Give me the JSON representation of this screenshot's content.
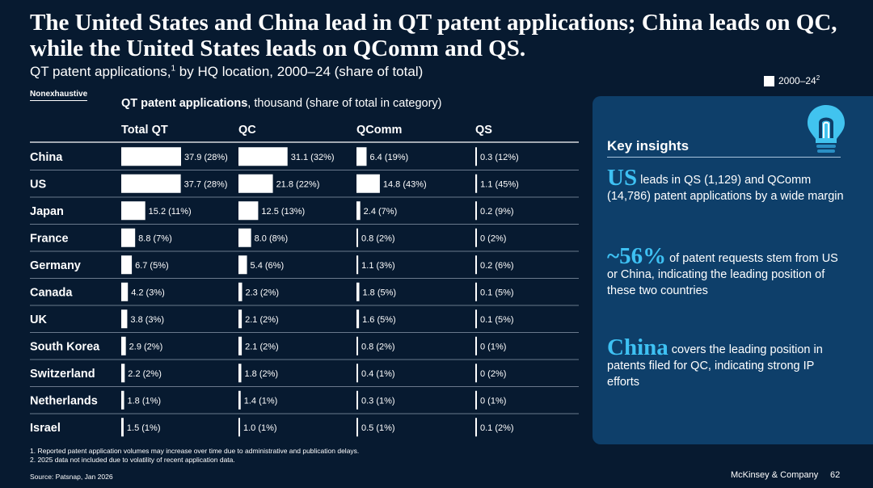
{
  "title": "The United States and China lead in QT patent applications; China leads on QC, while the United States leads on QComm and QS.",
  "subtitle": {
    "text": "QT patent applications,",
    "sup": "1",
    "rest": " by HQ location, 2000–24 (share of total)"
  },
  "nonexhaustive": "Nonexhaustive",
  "legend": {
    "label": "2000–24",
    "sup": "2"
  },
  "chart_heading": {
    "bold": "QT patent applications",
    "rest": ", thousand (share of total in category)"
  },
  "colors": {
    "background": "#071a30",
    "bar": "#ffffff",
    "panel": "#0e3f6a",
    "accent": "#3ec1f3",
    "row_rule": "#8c9aab"
  },
  "chart_data": {
    "type": "bar",
    "orientation": "horizontal",
    "xlabel": "QT patent applications, thousand (share of total in category)",
    "categories": [
      "China",
      "US",
      "Japan",
      "France",
      "Germany",
      "Canada",
      "UK",
      "South Korea",
      "Switzerland",
      "Netherlands",
      "Israel"
    ],
    "series": [
      {
        "name": "Total QT",
        "values": [
          37.9,
          37.7,
          15.2,
          8.8,
          6.7,
          4.2,
          3.8,
          2.9,
          2.2,
          1.8,
          1.5
        ],
        "labels": [
          "37.9 (28%)",
          "37.7 (28%)",
          "15.2 (11%)",
          "8.8 (7%)",
          "6.7 (5%)",
          "4.2 (3%)",
          "3.8 (3%)",
          "2.9 (2%)",
          "2.2 (2%)",
          "1.8 (1%)",
          "1.5 (1%)"
        ]
      },
      {
        "name": "QC",
        "values": [
          31.1,
          21.8,
          12.5,
          8.0,
          5.4,
          2.3,
          2.1,
          2.1,
          1.8,
          1.4,
          1.0
        ],
        "labels": [
          "31.1 (32%)",
          "21.8 (22%)",
          "12.5 (13%)",
          "8.0 (8%)",
          "5.4 (6%)",
          "2.3 (2%)",
          "2.1 (2%)",
          "2.1 (2%)",
          "1.8 (2%)",
          "1.4 (1%)",
          "1.0 (1%)"
        ]
      },
      {
        "name": "QComm",
        "values": [
          6.4,
          14.8,
          2.4,
          0.8,
          1.1,
          1.8,
          1.6,
          0.8,
          0.4,
          0.3,
          0.5
        ],
        "labels": [
          "6.4 (19%)",
          "14.8 (43%)",
          "2.4 (7%)",
          "0.8 (2%)",
          "1.1 (3%)",
          "1.8 (5%)",
          "1.6 (5%)",
          "0.8 (2%)",
          "0.4 (1%)",
          "0.3 (1%)",
          "0.5 (1%)"
        ]
      },
      {
        "name": "QS",
        "values": [
          0.3,
          1.1,
          0.2,
          0,
          0.2,
          0.1,
          0.1,
          0,
          0,
          0,
          0.1
        ],
        "labels": [
          "0.3 (12%)",
          "1.1 (45%)",
          "0.2 (9%)",
          "0 (2%)",
          "0.2 (6%)",
          "0.1 (5%)",
          "0.1 (5%)",
          "0 (1%)",
          "0 (2%)",
          "0 (1%)",
          "0.1 (2%)"
        ]
      }
    ],
    "legend": "top-right",
    "grid": false
  },
  "key_insights": {
    "heading": "Key insights",
    "items": [
      {
        "big": "US",
        "text": " leads in QS (1,129) and QComm (14,786) patent applications by a wide margin"
      },
      {
        "big": "~56%",
        "text": " of patent requests stem from US or China, indicating the leading position of these two countries"
      },
      {
        "big": "China",
        "text": " covers the leading position in patents filed for QC, indicating strong IP efforts"
      }
    ]
  },
  "footnotes": [
    "1. Reported patent application volumes may increase over time due to administrative and publication delays.",
    "2. 2025 data not included due to volatility of recent application data."
  ],
  "source": "Source: Patsnap, Jan 2026",
  "brand": "McKinsey & Company",
  "page_number": "62"
}
